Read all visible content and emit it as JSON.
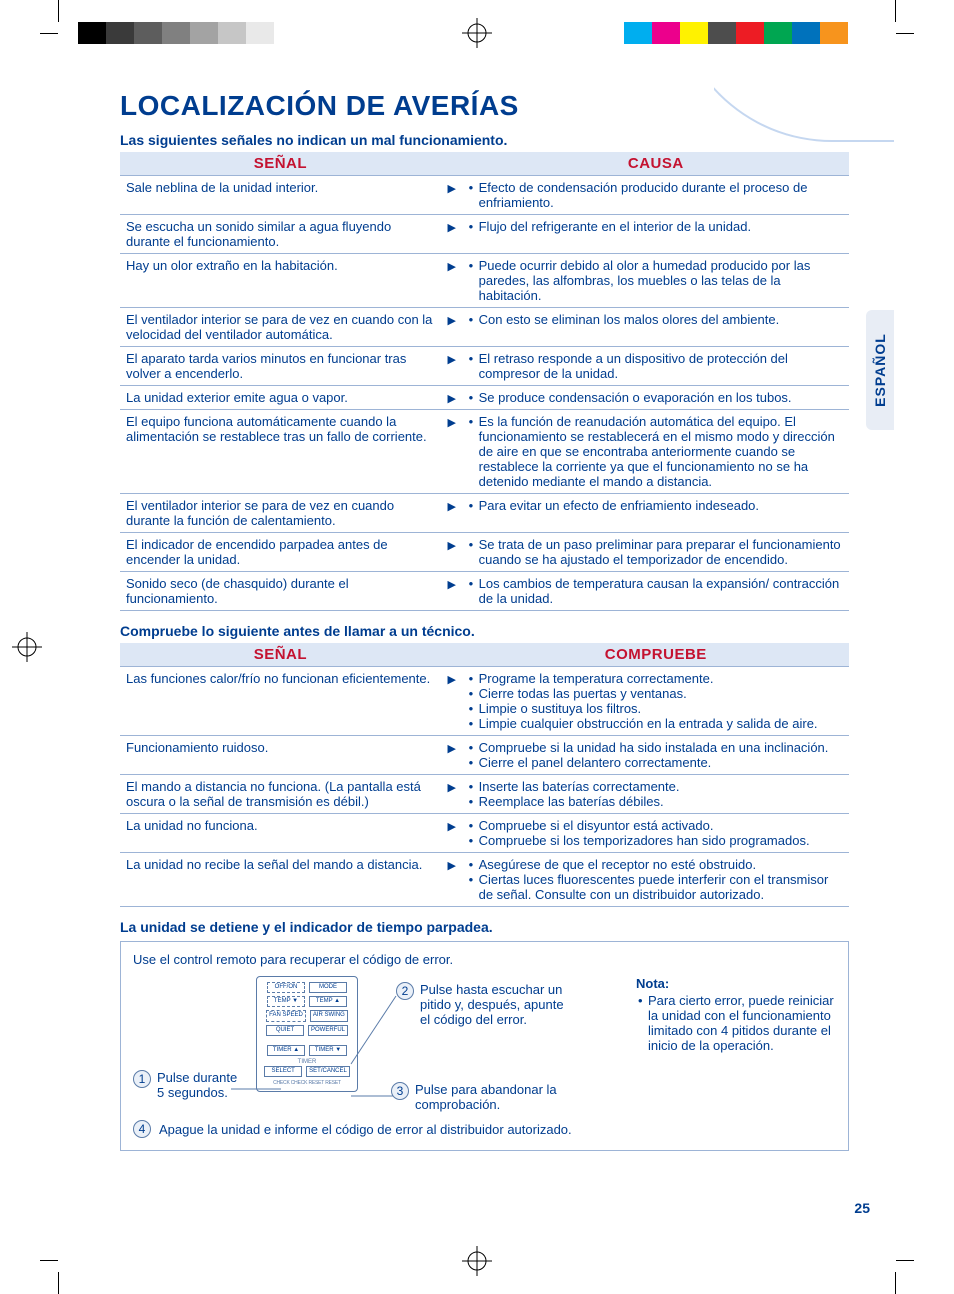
{
  "colorbar_left": [
    "#000000",
    "#3a3a3a",
    "#5d5d5d",
    "#808080",
    "#a3a3a3",
    "#c6c6c6",
    "#e9e9e9",
    "#ffffff",
    "#ffffff",
    "#ffffff"
  ],
  "colorbar_right": [
    "#ffffff",
    "#00aeef",
    "#ec008c",
    "#fff200",
    "#4d4d4d",
    "#ed1c24",
    "#00a651",
    "#0072bc",
    "#f7941d",
    "#ffffff"
  ],
  "side_tab": "ESPAÑOL",
  "title": "LOCALIZACIÓN DE AVERÍAS",
  "subtitle1": "Las siguientes señales no indican un mal funcionamiento.",
  "table1": {
    "headers": [
      "SEÑAL",
      "CAUSA"
    ],
    "rows": [
      {
        "signal": "Sale neblina de la unidad interior.",
        "cause": [
          "Efecto de condensación producido durante el proceso de enfriamiento."
        ]
      },
      {
        "signal": "Se escucha un sonido similar a agua fluyendo durante el funcionamiento.",
        "cause": [
          "Flujo del refrigerante en el interior de la unidad."
        ]
      },
      {
        "signal": "Hay un olor extraño en la habitación.",
        "cause": [
          "Puede ocurrir debido al olor a humedad producido por las paredes, las alfombras, los muebles o las telas de la habitación."
        ]
      },
      {
        "signal": "El ventilador interior se para de vez en cuando con la velocidad del ventilador automática.",
        "cause": [
          "Con esto se eliminan los malos olores del ambiente."
        ]
      },
      {
        "signal": "El aparato tarda varios minutos en funcionar tras volver a encenderlo.",
        "cause": [
          "El retraso responde a un dispositivo de protección del compresor de la unidad."
        ]
      },
      {
        "signal": "La unidad exterior emite agua o vapor.",
        "cause": [
          "Se produce condensación o evaporación en los tubos."
        ]
      },
      {
        "signal": "El equipo funciona automáticamente cuando la alimentación se restablece tras un fallo de corriente.",
        "cause": [
          "Es la función de reanudación automática del equipo. El funcionamiento se restablecerá en el mismo modo y dirección de aire en que se encontraba anteriormente cuando se restablece la corriente ya que el funcionamiento no se ha detenido mediante el mando a distancia."
        ]
      },
      {
        "signal": "El ventilador interior se para de vez en cuando durante la función de calentamiento.",
        "cause": [
          "Para evitar un efecto de enfriamiento indeseado."
        ]
      },
      {
        "signal": "El indicador de encendido parpadea antes de encender la unidad.",
        "cause": [
          "Se trata de un paso preliminar para preparar el funcionamiento cuando se ha ajustado el temporizador de encendido."
        ]
      },
      {
        "signal": "Sonido seco (de chasquido) durante el funcionamiento.",
        "cause": [
          "Los cambios de temperatura causan la expansión/ contracción de la unidad."
        ]
      }
    ]
  },
  "subtitle2": "Compruebe lo siguiente antes de llamar a un técnico.",
  "table2": {
    "headers": [
      "SEÑAL",
      "COMPRUEBE"
    ],
    "rows": [
      {
        "signal": "Las funciones calor/frío no funcionan eficientemente.",
        "cause": [
          "Programe la temperatura correctamente.",
          "Cierre todas las puertas y ventanas.",
          "Limpie o sustituya los filtros.",
          "Limpie cualquier obstrucción en la entrada y salida de aire."
        ]
      },
      {
        "signal": "Funcionamiento ruidoso.",
        "cause": [
          "Compruebe si la unidad ha sido instalada en una inclinación.",
          "Cierre el panel delantero correctamente."
        ]
      },
      {
        "signal": "El mando a distancia no funciona.\n(La pantalla está oscura o la señal de transmisión es débil.)",
        "cause": [
          "Inserte las baterías correctamente.",
          "Reemplace las baterías débiles."
        ]
      },
      {
        "signal": "La unidad no funciona.",
        "cause": [
          "Compruebe si el disyuntor está activado.",
          "Compruebe si los temporizadores han sido programados."
        ]
      },
      {
        "signal": "La unidad no recibe la señal del mando a distancia.",
        "cause": [
          "Asegúrese de que el receptor no esté obstruido.",
          "Ciertas luces fluorescentes puede interferir con el transmisor de señal. Consulte con un distribuidor autorizado."
        ]
      }
    ]
  },
  "section3": {
    "title": "La unidad se detiene y el indicador de tiempo parpadea.",
    "intro": "Use el control remoto para recuperar el código de error.",
    "remote_buttons": {
      "r1": [
        "OFF/ON",
        "MODE"
      ],
      "r2": [
        "TEMP ▼",
        "TEMP ▲"
      ],
      "r3": [
        "FAN SPEED",
        "AIR SWING"
      ],
      "r4": [
        "QUIET",
        "POWERFUL"
      ],
      "r5": [
        "TIMER ▲",
        "TIMER ▼"
      ],
      "timer_lbl": "TIMER",
      "r6": [
        "SELECT",
        "SET/CANCEL"
      ],
      "tiny": "CHECK   CHECK RESET   RESET"
    },
    "steps": {
      "s1": {
        "n": "1",
        "text": "Pulse durante 5 segundos."
      },
      "s2": {
        "n": "2",
        "text": "Pulse hasta escuchar un pitido y, después, apunte el código del error."
      },
      "s3": {
        "n": "3",
        "text": "Pulse para abandonar la comprobación."
      },
      "s4": {
        "n": "4",
        "text": "Apague la unidad e informe el código de error al distribuidor autorizado."
      }
    },
    "note": {
      "title": "Nota:",
      "items": [
        "Para cierto error, puede reiniciar la unidad con el funcionamiento limitado con 4 pitidos durante el inicio de la operación."
      ]
    }
  },
  "page_number": "25"
}
